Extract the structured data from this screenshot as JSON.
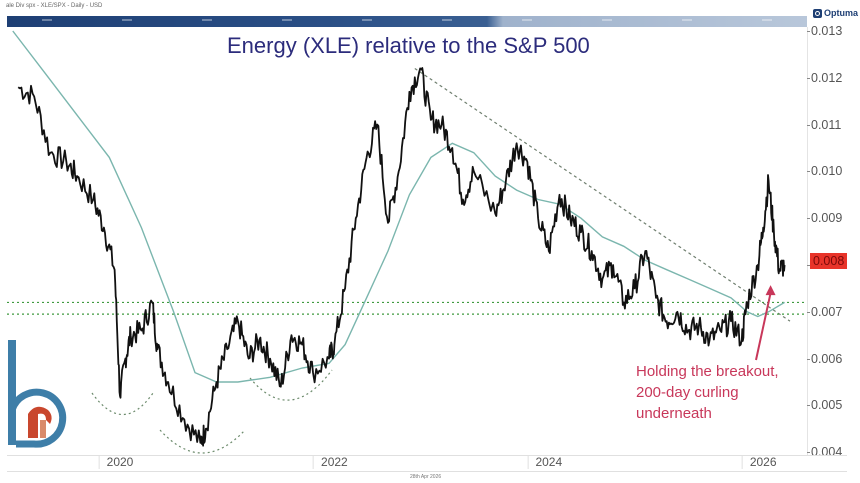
{
  "header": {
    "source_text": "ale Div spx - XLE/SPX - Daily - USD",
    "brand": "Optuma",
    "date_stamp": "28th Apr 2026"
  },
  "colors": {
    "price_line": "#111111",
    "moving_average": "#7bb6ae",
    "trend_line": "#6f7f6f",
    "support_lines": "#3f9a3f",
    "title": "#2c2c7c",
    "annotation": "#c8375a",
    "last_price_badge": "#e8342a",
    "nav_bar": "#1e3f74"
  },
  "chart_data": {
    "type": "line",
    "title": "Energy (XLE) relative to the S&P 500",
    "xlabel": "",
    "ylabel": "",
    "ylim": [
      0.004,
      0.013
    ],
    "yticks": [
      "0.013",
      "0.012",
      "0.011",
      "0.010",
      "0.009",
      "0.008",
      "0.007",
      "0.006",
      "0.005",
      "0.004"
    ],
    "xticks": [
      "2020",
      "2022",
      "2024",
      "2026"
    ],
    "grid": false,
    "last_price_label": "0.008",
    "series": [
      {
        "name": "XLE/SPX ratio (daily)",
        "x": [
          2019.05,
          2019.2,
          2019.35,
          2019.5,
          2019.6,
          2019.75,
          2019.85,
          2019.95,
          2020.0,
          2020.05,
          2020.1,
          2020.2,
          2020.3,
          2020.35,
          2020.45,
          2020.6,
          2020.75,
          2020.8,
          2020.9,
          2021.0,
          2021.1,
          2021.2,
          2021.3,
          2021.4,
          2021.5,
          2021.6,
          2021.7,
          2021.8,
          2021.95,
          2022.0,
          2022.1,
          2022.2,
          2022.3,
          2022.4,
          2022.5,
          2022.6,
          2022.7,
          2022.8,
          2022.9,
          2023.0,
          2023.1,
          2023.2,
          2023.3,
          2023.5,
          2023.6,
          2023.7,
          2023.8,
          2023.9,
          2024.0,
          2024.1,
          2024.2,
          2024.3,
          2024.4,
          2024.5,
          2024.6,
          2024.7,
          2024.8,
          2024.9,
          2025.0,
          2025.1,
          2025.2,
          2025.3,
          2025.4,
          2025.5,
          2025.6,
          2025.7,
          2025.8,
          2025.85,
          2025.95,
          2026.0,
          2026.05,
          2026.1,
          2026.15,
          2026.2
        ],
        "values": [
          0.0118,
          0.0116,
          0.0104,
          0.0102,
          0.0099,
          0.0094,
          0.0088,
          0.0079,
          0.0052,
          0.006,
          0.0065,
          0.0066,
          0.0072,
          0.0062,
          0.0055,
          0.0047,
          0.0042,
          0.0045,
          0.0055,
          0.0062,
          0.0068,
          0.006,
          0.0064,
          0.006,
          0.0054,
          0.0065,
          0.0063,
          0.0057,
          0.006,
          0.0063,
          0.0075,
          0.009,
          0.0103,
          0.011,
          0.0089,
          0.01,
          0.0117,
          0.0122,
          0.0111,
          0.011,
          0.0105,
          0.0094,
          0.01,
          0.0091,
          0.0098,
          0.0106,
          0.0102,
          0.009,
          0.0083,
          0.0095,
          0.009,
          0.0087,
          0.0083,
          0.0077,
          0.008,
          0.0072,
          0.0075,
          0.0083,
          0.0073,
          0.0068,
          0.007,
          0.0066,
          0.0067,
          0.0064,
          0.0066,
          0.0068,
          0.0064,
          0.0072,
          0.008,
          0.0088,
          0.0098,
          0.0087,
          0.0079,
          0.008
        ]
      },
      {
        "name": "200-day moving average",
        "x": [
          2019.0,
          2019.3,
          2019.6,
          2019.9,
          2020.2,
          2020.5,
          2020.7,
          2020.9,
          2021.1,
          2021.4,
          2021.7,
          2021.95,
          2022.1,
          2022.3,
          2022.5,
          2022.7,
          2022.9,
          2023.1,
          2023.3,
          2023.5,
          2023.7,
          2023.9,
          2024.1,
          2024.3,
          2024.5,
          2024.7,
          2024.9,
          2025.1,
          2025.3,
          2025.5,
          2025.7,
          2025.85,
          2025.95,
          2026.05,
          2026.2
        ],
        "values": [
          0.013,
          0.0121,
          0.0112,
          0.0103,
          0.0088,
          0.007,
          0.0057,
          0.0055,
          0.0055,
          0.0056,
          0.0058,
          0.0059,
          0.0063,
          0.0073,
          0.0083,
          0.0095,
          0.0103,
          0.0106,
          0.0104,
          0.0099,
          0.0096,
          0.0094,
          0.0093,
          0.009,
          0.0086,
          0.0084,
          0.0081,
          0.0079,
          0.0077,
          0.0075,
          0.0073,
          0.007,
          0.0069,
          0.007,
          0.0072
        ]
      }
    ],
    "overlays": {
      "downtrend_line": {
        "from": [
          2022.75,
          0.0122
        ],
        "to": [
          2026.25,
          0.0068
        ],
        "style": "dashed"
      },
      "support_lines": [
        {
          "y": 0.0072,
          "style": "dotted"
        },
        {
          "y": 0.00695,
          "style": "dotted"
        }
      ],
      "rounded_bottom_arcs": 4
    },
    "annotations": [
      {
        "text": "Holding the breakout, 200-day curling underneath",
        "arrow_to": [
          2026.05,
          0.0074
        ]
      }
    ]
  },
  "annotation_lines": [
    "Holding the breakout,",
    "200-day curling",
    "underneath"
  ]
}
